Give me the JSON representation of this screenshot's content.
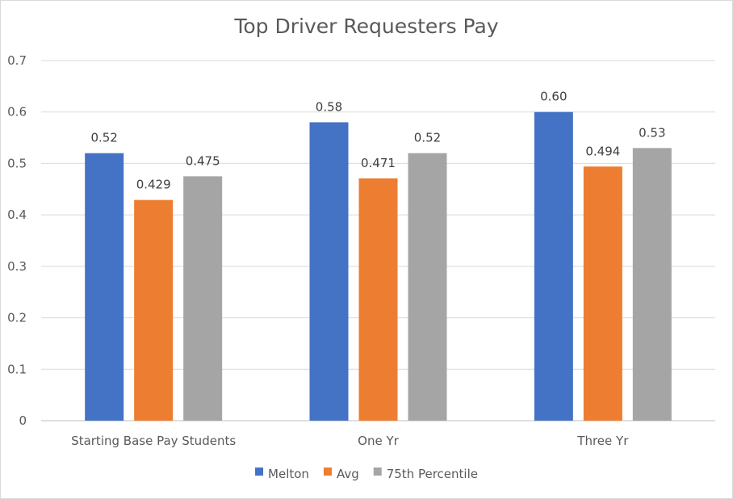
{
  "chart_data": {
    "type": "bar",
    "title": "Top Driver Requesters Pay",
    "categories": [
      "Starting Base Pay Students",
      "One Yr",
      "Three Yr"
    ],
    "series": [
      {
        "name": "Melton",
        "color": "#4472C4",
        "values": [
          0.52,
          0.58,
          0.6
        ],
        "labels": [
          "0.52",
          "0.58",
          "0.60"
        ]
      },
      {
        "name": "Avg",
        "color": "#ED7D31",
        "values": [
          0.429,
          0.471,
          0.494
        ],
        "labels": [
          "0.429",
          "0.471",
          "0.494"
        ]
      },
      {
        "name": "75th Percentile",
        "color": "#A5A5A5",
        "values": [
          0.475,
          0.52,
          0.53
        ],
        "labels": [
          "0.475",
          "0.52",
          "0.53"
        ]
      }
    ],
    "ylim": [
      0,
      0.7
    ],
    "yticks": [
      "0",
      "0.1",
      "0.2",
      "0.3",
      "0.4",
      "0.5",
      "0.6",
      "0.7"
    ],
    "grid": true,
    "legend_position": "bottom"
  }
}
